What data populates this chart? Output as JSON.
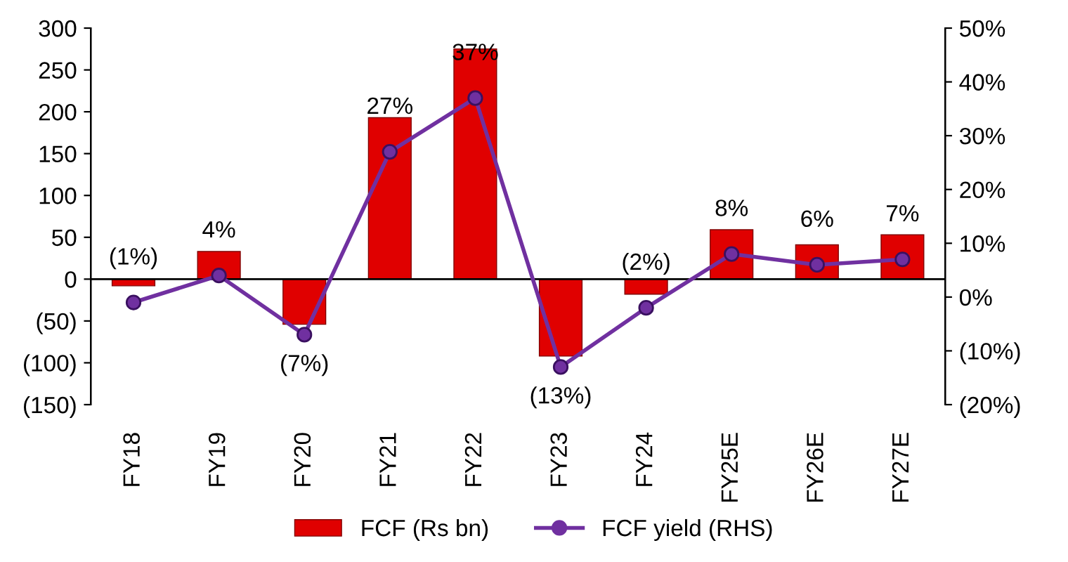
{
  "chart_data": {
    "type": "bar",
    "categories": [
      "FY18",
      "FY19",
      "FY20",
      "FY21",
      "FY22",
      "FY23",
      "FY24",
      "FY25E",
      "FY26E",
      "FY27E"
    ],
    "series": [
      {
        "name": "FCF (Rs bn)",
        "color": "#e00000",
        "values": [
          -8,
          33,
          -54,
          193,
          275,
          -92,
          -18,
          59,
          41,
          53
        ]
      },
      {
        "name": "FCF yield (RHS)",
        "type": "line",
        "axis": "y2",
        "color": "#7030a0",
        "marker": "circle",
        "values": [
          -1,
          4,
          -7,
          27,
          37,
          -13,
          -2,
          8,
          6,
          7
        ],
        "value_labels": [
          "(1%)",
          "4%",
          "(7%)",
          "27%",
          "37%",
          "(13%)",
          "(2%)",
          "8%",
          "6%",
          "7%"
        ]
      }
    ],
    "ylim": [
      -150,
      300
    ],
    "yticks": [
      {
        "value": -150,
        "label": "(150)"
      },
      {
        "value": -100,
        "label": "(100)"
      },
      {
        "value": -50,
        "label": "(50)"
      },
      0,
      50,
      100,
      150,
      200,
      250,
      300
    ],
    "y2lim": [
      -20,
      50
    ],
    "y2ticks": [
      {
        "value": -20,
        "label": "(20%)"
      },
      {
        "value": -10,
        "label": "(10%)"
      },
      {
        "value": 0,
        "label": "0%"
      },
      {
        "value": 10,
        "label": "10%"
      },
      {
        "value": 20,
        "label": "20%"
      },
      {
        "value": 30,
        "label": "30%"
      },
      {
        "value": 40,
        "label": "40%"
      },
      {
        "value": 50,
        "label": "50%"
      }
    ],
    "ref_lines": [
      {
        "axis": "y",
        "value": 0,
        "color": "#000000"
      }
    ],
    "grid": false,
    "legend": "bottom"
  }
}
